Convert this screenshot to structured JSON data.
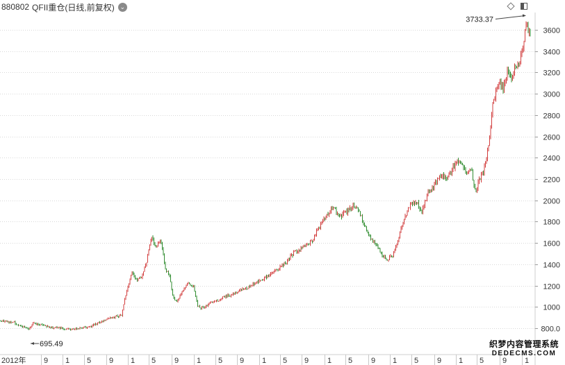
{
  "header": {
    "code": "880802",
    "name": "QFII重仓(日线,前复权)",
    "dropdown_icon": "chevron-down-icon"
  },
  "toolbar": {
    "icons": [
      "diamond-icon",
      "window-toggle-icon"
    ]
  },
  "watermark": {
    "line1": "织梦内容管理系统",
    "line2": "DEDECMS.COM"
  },
  "colors": {
    "up": "#d23c3c",
    "down": "#2e8b2e",
    "grid": "#d8d8d8",
    "text": "#333333"
  },
  "chart_data": {
    "type": "candlestick",
    "title": "880802 QFII重仓(日线,前复权)",
    "ylim": [
      660,
      3760
    ],
    "yticks": [
      800,
      1000,
      1200,
      1400,
      1600,
      1800,
      2000,
      2200,
      2400,
      2600,
      2800,
      3000,
      3200,
      3400,
      3600
    ],
    "ytick_labels": [
      "800.0",
      "1000",
      "1200",
      "1400",
      "1600",
      "1800",
      "2000",
      "2200",
      "2400",
      "2600",
      "2800",
      "3000",
      "3200",
      "3400",
      "3600"
    ],
    "xtick_labels": [
      "2012年",
      "9",
      "1",
      "5",
      "9",
      "1",
      "5",
      "9",
      "1",
      "5",
      "9",
      "1",
      "5",
      "9",
      "1",
      "5",
      "9",
      "1",
      "5",
      "9",
      "1",
      "5",
      "9",
      "1"
    ],
    "grid": true,
    "annotations": [
      {
        "label": "3733.37",
        "value": 3733.37,
        "type": "period-high"
      },
      {
        "label": "695.49",
        "value": 695.49,
        "type": "period-low"
      }
    ],
    "close_path": [
      [
        0,
        875
      ],
      [
        10,
        860
      ],
      [
        20,
        855
      ],
      [
        35,
        810
      ],
      [
        42,
        790
      ],
      [
        48,
        850
      ],
      [
        60,
        830
      ],
      [
        70,
        810
      ],
      [
        85,
        800
      ],
      [
        100,
        790
      ],
      [
        115,
        800
      ],
      [
        130,
        820
      ],
      [
        145,
        860
      ],
      [
        160,
        900
      ],
      [
        175,
        920
      ],
      [
        182,
        1150
      ],
      [
        190,
        1320
      ],
      [
        198,
        1250
      ],
      [
        205,
        1300
      ],
      [
        212,
        1450
      ],
      [
        218,
        1660
      ],
      [
        225,
        1550
      ],
      [
        231,
        1650
      ],
      [
        238,
        1350
      ],
      [
        244,
        1300
      ],
      [
        248,
        1100
      ],
      [
        255,
        1050
      ],
      [
        262,
        1150
      ],
      [
        270,
        1220
      ],
      [
        278,
        1200
      ],
      [
        285,
        1000
      ],
      [
        292,
        990
      ],
      [
        300,
        1030
      ],
      [
        310,
        1050
      ],
      [
        320,
        1080
      ],
      [
        330,
        1110
      ],
      [
        340,
        1130
      ],
      [
        350,
        1170
      ],
      [
        360,
        1190
      ],
      [
        372,
        1240
      ],
      [
        385,
        1290
      ],
      [
        398,
        1340
      ],
      [
        410,
        1410
      ],
      [
        422,
        1500
      ],
      [
        435,
        1550
      ],
      [
        448,
        1610
      ],
      [
        458,
        1730
      ],
      [
        466,
        1820
      ],
      [
        474,
        1890
      ],
      [
        480,
        1960
      ],
      [
        488,
        1840
      ],
      [
        496,
        1880
      ],
      [
        504,
        1920
      ],
      [
        512,
        1960
      ],
      [
        518,
        1880
      ],
      [
        525,
        1760
      ],
      [
        532,
        1660
      ],
      [
        540,
        1600
      ],
      [
        548,
        1500
      ],
      [
        556,
        1440
      ],
      [
        565,
        1480
      ],
      [
        572,
        1600
      ],
      [
        578,
        1760
      ],
      [
        585,
        1880
      ],
      [
        592,
        1960
      ],
      [
        600,
        1980
      ],
      [
        607,
        1900
      ],
      [
        614,
        2030
      ],
      [
        620,
        2110
      ],
      [
        628,
        2180
      ],
      [
        636,
        2240
      ],
      [
        644,
        2200
      ],
      [
        652,
        2300
      ],
      [
        660,
        2380
      ],
      [
        666,
        2330
      ],
      [
        672,
        2250
      ],
      [
        678,
        2300
      ],
      [
        684,
        2080
      ],
      [
        690,
        2200
      ],
      [
        697,
        2300
      ],
      [
        703,
        2500
      ],
      [
        708,
        2850
      ],
      [
        713,
        3000
      ],
      [
        718,
        3120
      ],
      [
        724,
        3050
      ],
      [
        730,
        3200
      ],
      [
        736,
        3150
      ],
      [
        742,
        3250
      ],
      [
        748,
        3320
      ],
      [
        753,
        3450
      ],
      [
        757,
        3650
      ],
      [
        760,
        3620
      ],
      [
        764,
        3540
      ]
    ]
  }
}
